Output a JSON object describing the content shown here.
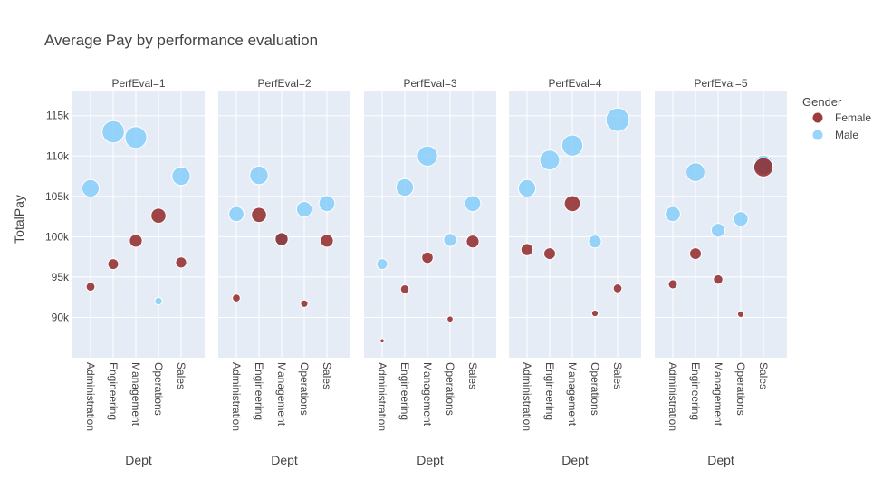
{
  "chart_data": {
    "type": "scatter",
    "title": "Average Pay by performance evaluation",
    "xlabel": "Dept",
    "ylabel": "TotalPay",
    "categories": [
      "Administration",
      "Engineering",
      "Management",
      "Operations",
      "Sales"
    ],
    "ylim": [
      85000,
      118000
    ],
    "yticks": [
      90000,
      95000,
      100000,
      105000,
      110000,
      115000
    ],
    "ytick_labels": [
      "90k",
      "95k",
      "100k",
      "105k",
      "110k",
      "115k"
    ],
    "grid": true,
    "legend": {
      "title": "Gender",
      "placement": "top-right",
      "entries": [
        {
          "name": "Female",
          "color": "#8b1a1a"
        },
        {
          "name": "Male",
          "color": "#87cefa"
        }
      ]
    },
    "panels": [
      {
        "label": "PerfEval=1",
        "points": [
          {
            "gender": "Male",
            "dept": "Administration",
            "y": 106000
          },
          {
            "gender": "Male",
            "dept": "Engineering",
            "y": 113000
          },
          {
            "gender": "Male",
            "dept": "Management",
            "y": 112300
          },
          {
            "gender": "Male",
            "dept": "Operations",
            "y": 92000
          },
          {
            "gender": "Male",
            "dept": "Sales",
            "y": 107500
          },
          {
            "gender": "Female",
            "dept": "Administration",
            "y": 93800
          },
          {
            "gender": "Female",
            "dept": "Engineering",
            "y": 96600
          },
          {
            "gender": "Female",
            "dept": "Management",
            "y": 99500
          },
          {
            "gender": "Female",
            "dept": "Operations",
            "y": 102600
          },
          {
            "gender": "Female",
            "dept": "Sales",
            "y": 96800
          }
        ]
      },
      {
        "label": "PerfEval=2",
        "points": [
          {
            "gender": "Male",
            "dept": "Administration",
            "y": 102800
          },
          {
            "gender": "Male",
            "dept": "Engineering",
            "y": 107600
          },
          {
            "gender": "Male",
            "dept": "Management",
            "y": 99700
          },
          {
            "gender": "Male",
            "dept": "Operations",
            "y": 103400
          },
          {
            "gender": "Male",
            "dept": "Sales",
            "y": 104100
          },
          {
            "gender": "Female",
            "dept": "Administration",
            "y": 92400
          },
          {
            "gender": "Female",
            "dept": "Engineering",
            "y": 102700
          },
          {
            "gender": "Female",
            "dept": "Management",
            "y": 99700
          },
          {
            "gender": "Female",
            "dept": "Operations",
            "y": 91700
          },
          {
            "gender": "Female",
            "dept": "Sales",
            "y": 99500
          }
        ]
      },
      {
        "label": "PerfEval=3",
        "points": [
          {
            "gender": "Male",
            "dept": "Administration",
            "y": 96600
          },
          {
            "gender": "Male",
            "dept": "Engineering",
            "y": 106100
          },
          {
            "gender": "Male",
            "dept": "Management",
            "y": 110000
          },
          {
            "gender": "Male",
            "dept": "Operations",
            "y": 99600
          },
          {
            "gender": "Male",
            "dept": "Sales",
            "y": 104100
          },
          {
            "gender": "Female",
            "dept": "Administration",
            "y": 87100
          },
          {
            "gender": "Female",
            "dept": "Engineering",
            "y": 93500
          },
          {
            "gender": "Female",
            "dept": "Management",
            "y": 97400
          },
          {
            "gender": "Female",
            "dept": "Operations",
            "y": 89800
          },
          {
            "gender": "Female",
            "dept": "Sales",
            "y": 99400
          }
        ]
      },
      {
        "label": "PerfEval=4",
        "points": [
          {
            "gender": "Male",
            "dept": "Administration",
            "y": 106000
          },
          {
            "gender": "Male",
            "dept": "Engineering",
            "y": 109500
          },
          {
            "gender": "Male",
            "dept": "Management",
            "y": 111300
          },
          {
            "gender": "Male",
            "dept": "Operations",
            "y": 99400
          },
          {
            "gender": "Male",
            "dept": "Sales",
            "y": 114500
          },
          {
            "gender": "Female",
            "dept": "Administration",
            "y": 98400
          },
          {
            "gender": "Female",
            "dept": "Engineering",
            "y": 97900
          },
          {
            "gender": "Female",
            "dept": "Management",
            "y": 104100
          },
          {
            "gender": "Female",
            "dept": "Operations",
            "y": 90500
          },
          {
            "gender": "Female",
            "dept": "Sales",
            "y": 93600
          }
        ]
      },
      {
        "label": "PerfEval=5",
        "points": [
          {
            "gender": "Male",
            "dept": "Administration",
            "y": 102800
          },
          {
            "gender": "Male",
            "dept": "Engineering",
            "y": 108000
          },
          {
            "gender": "Male",
            "dept": "Management",
            "y": 100800
          },
          {
            "gender": "Male",
            "dept": "Operations",
            "y": 102200
          },
          {
            "gender": "Male",
            "dept": "Sales",
            "y": 108900
          },
          {
            "gender": "Female",
            "dept": "Administration",
            "y": 94100
          },
          {
            "gender": "Female",
            "dept": "Engineering",
            "y": 97900
          },
          {
            "gender": "Female",
            "dept": "Management",
            "y": 94700
          },
          {
            "gender": "Female",
            "dept": "Operations",
            "y": 90400
          },
          {
            "gender": "Female",
            "dept": "Sales",
            "y": 108600
          }
        ]
      }
    ]
  }
}
